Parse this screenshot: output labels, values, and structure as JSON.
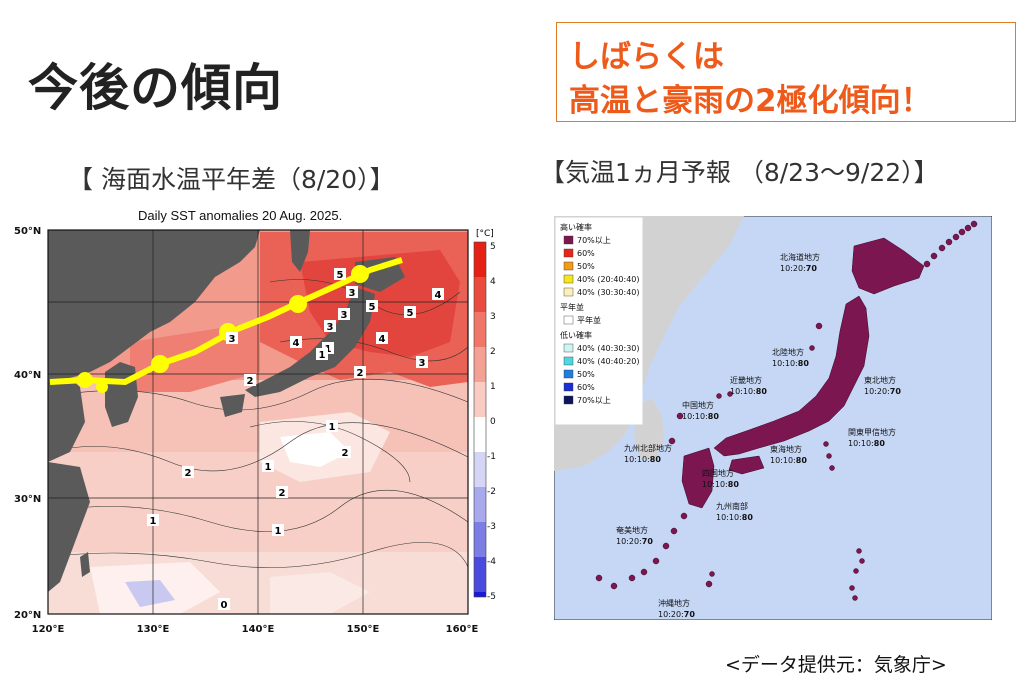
{
  "title": "今後の傾向",
  "callout": {
    "line1": "しばらくは",
    "line2": "高温と豪雨の2極化傾向！",
    "border_color": "#e07b25",
    "text_color": "#ee5a1a"
  },
  "left_panel": {
    "label": "【 海面水温平年差（8/20）】",
    "map_title": "Daily SST anomalies 20 Aug. 2025.",
    "lat_labels": [
      "50°N",
      "40°N",
      "30°N",
      "20°N"
    ],
    "lon_labels": [
      "120°E",
      "130°E",
      "140°E",
      "150°E",
      "160°E"
    ],
    "unit": "[°C]",
    "colorbar": [
      "5",
      "4",
      "3",
      "2",
      "1",
      "0",
      "-1",
      "-2",
      "-3",
      "-4",
      "-5"
    ],
    "contour_labels": [
      "5",
      "5",
      "5",
      "4",
      "4",
      "4",
      "3",
      "3",
      "3",
      "3",
      "3",
      "2",
      "2",
      "2",
      "2",
      "2",
      "1",
      "1",
      "1",
      "1",
      "1",
      "1",
      "0"
    ],
    "track_color": "#ffff00"
  },
  "right_panel": {
    "label": "【気温1ヵ月予報 （8/23～9/22）】",
    "legend": {
      "high_header": "高い確率",
      "high": [
        {
          "label": "70%以上",
          "color": "#7b1650"
        },
        {
          "label": "60%",
          "color": "#e8251a"
        },
        {
          "label": "50%",
          "color": "#f39a1a"
        },
        {
          "label": "40% (20:40:40)",
          "color": "#f5e61a"
        },
        {
          "label": "40% (30:30:40)",
          "color": "#fbf0b8"
        }
      ],
      "normal_header": "平年並",
      "normal": [
        {
          "label": "平年並",
          "color": "#ffffff"
        }
      ],
      "low_header": "低い確率",
      "low": [
        {
          "label": "40% (40:30:30)",
          "color": "#cff5f2"
        },
        {
          "label": "40% (40:40:20)",
          "color": "#4fd6e3"
        },
        {
          "label": "50%",
          "color": "#1e7fe0"
        },
        {
          "label": "60%",
          "color": "#1a2fd4"
        },
        {
          "label": "70%以上",
          "color": "#0c1660"
        }
      ]
    },
    "regions": [
      {
        "name": "北海道地方",
        "ratio": "10:20:",
        "pct": "70"
      },
      {
        "name": "北陸地方",
        "ratio": "10:10:",
        "pct": "80"
      },
      {
        "name": "東北地方",
        "ratio": "10:20:",
        "pct": "70"
      },
      {
        "name": "近畿地方",
        "ratio": "10:10:",
        "pct": "80"
      },
      {
        "name": "中国地方",
        "ratio": "10:10:",
        "pct": "80"
      },
      {
        "name": "関東甲信地方",
        "ratio": "10:10:",
        "pct": "80"
      },
      {
        "name": "九州北部地方",
        "ratio": "10:10:",
        "pct": "80"
      },
      {
        "name": "東海地方",
        "ratio": "10:10:",
        "pct": "80"
      },
      {
        "name": "四国地方",
        "ratio": "10:10:",
        "pct": "80"
      },
      {
        "name": "九州南部",
        "ratio": "10:10:",
        "pct": "80"
      },
      {
        "name": "奄美地方",
        "ratio": "10:20:",
        "pct": "70"
      },
      {
        "name": "沖縄地方",
        "ratio": "10:20:",
        "pct": "70"
      }
    ]
  },
  "source_note": "<データ提供元：気象庁>"
}
